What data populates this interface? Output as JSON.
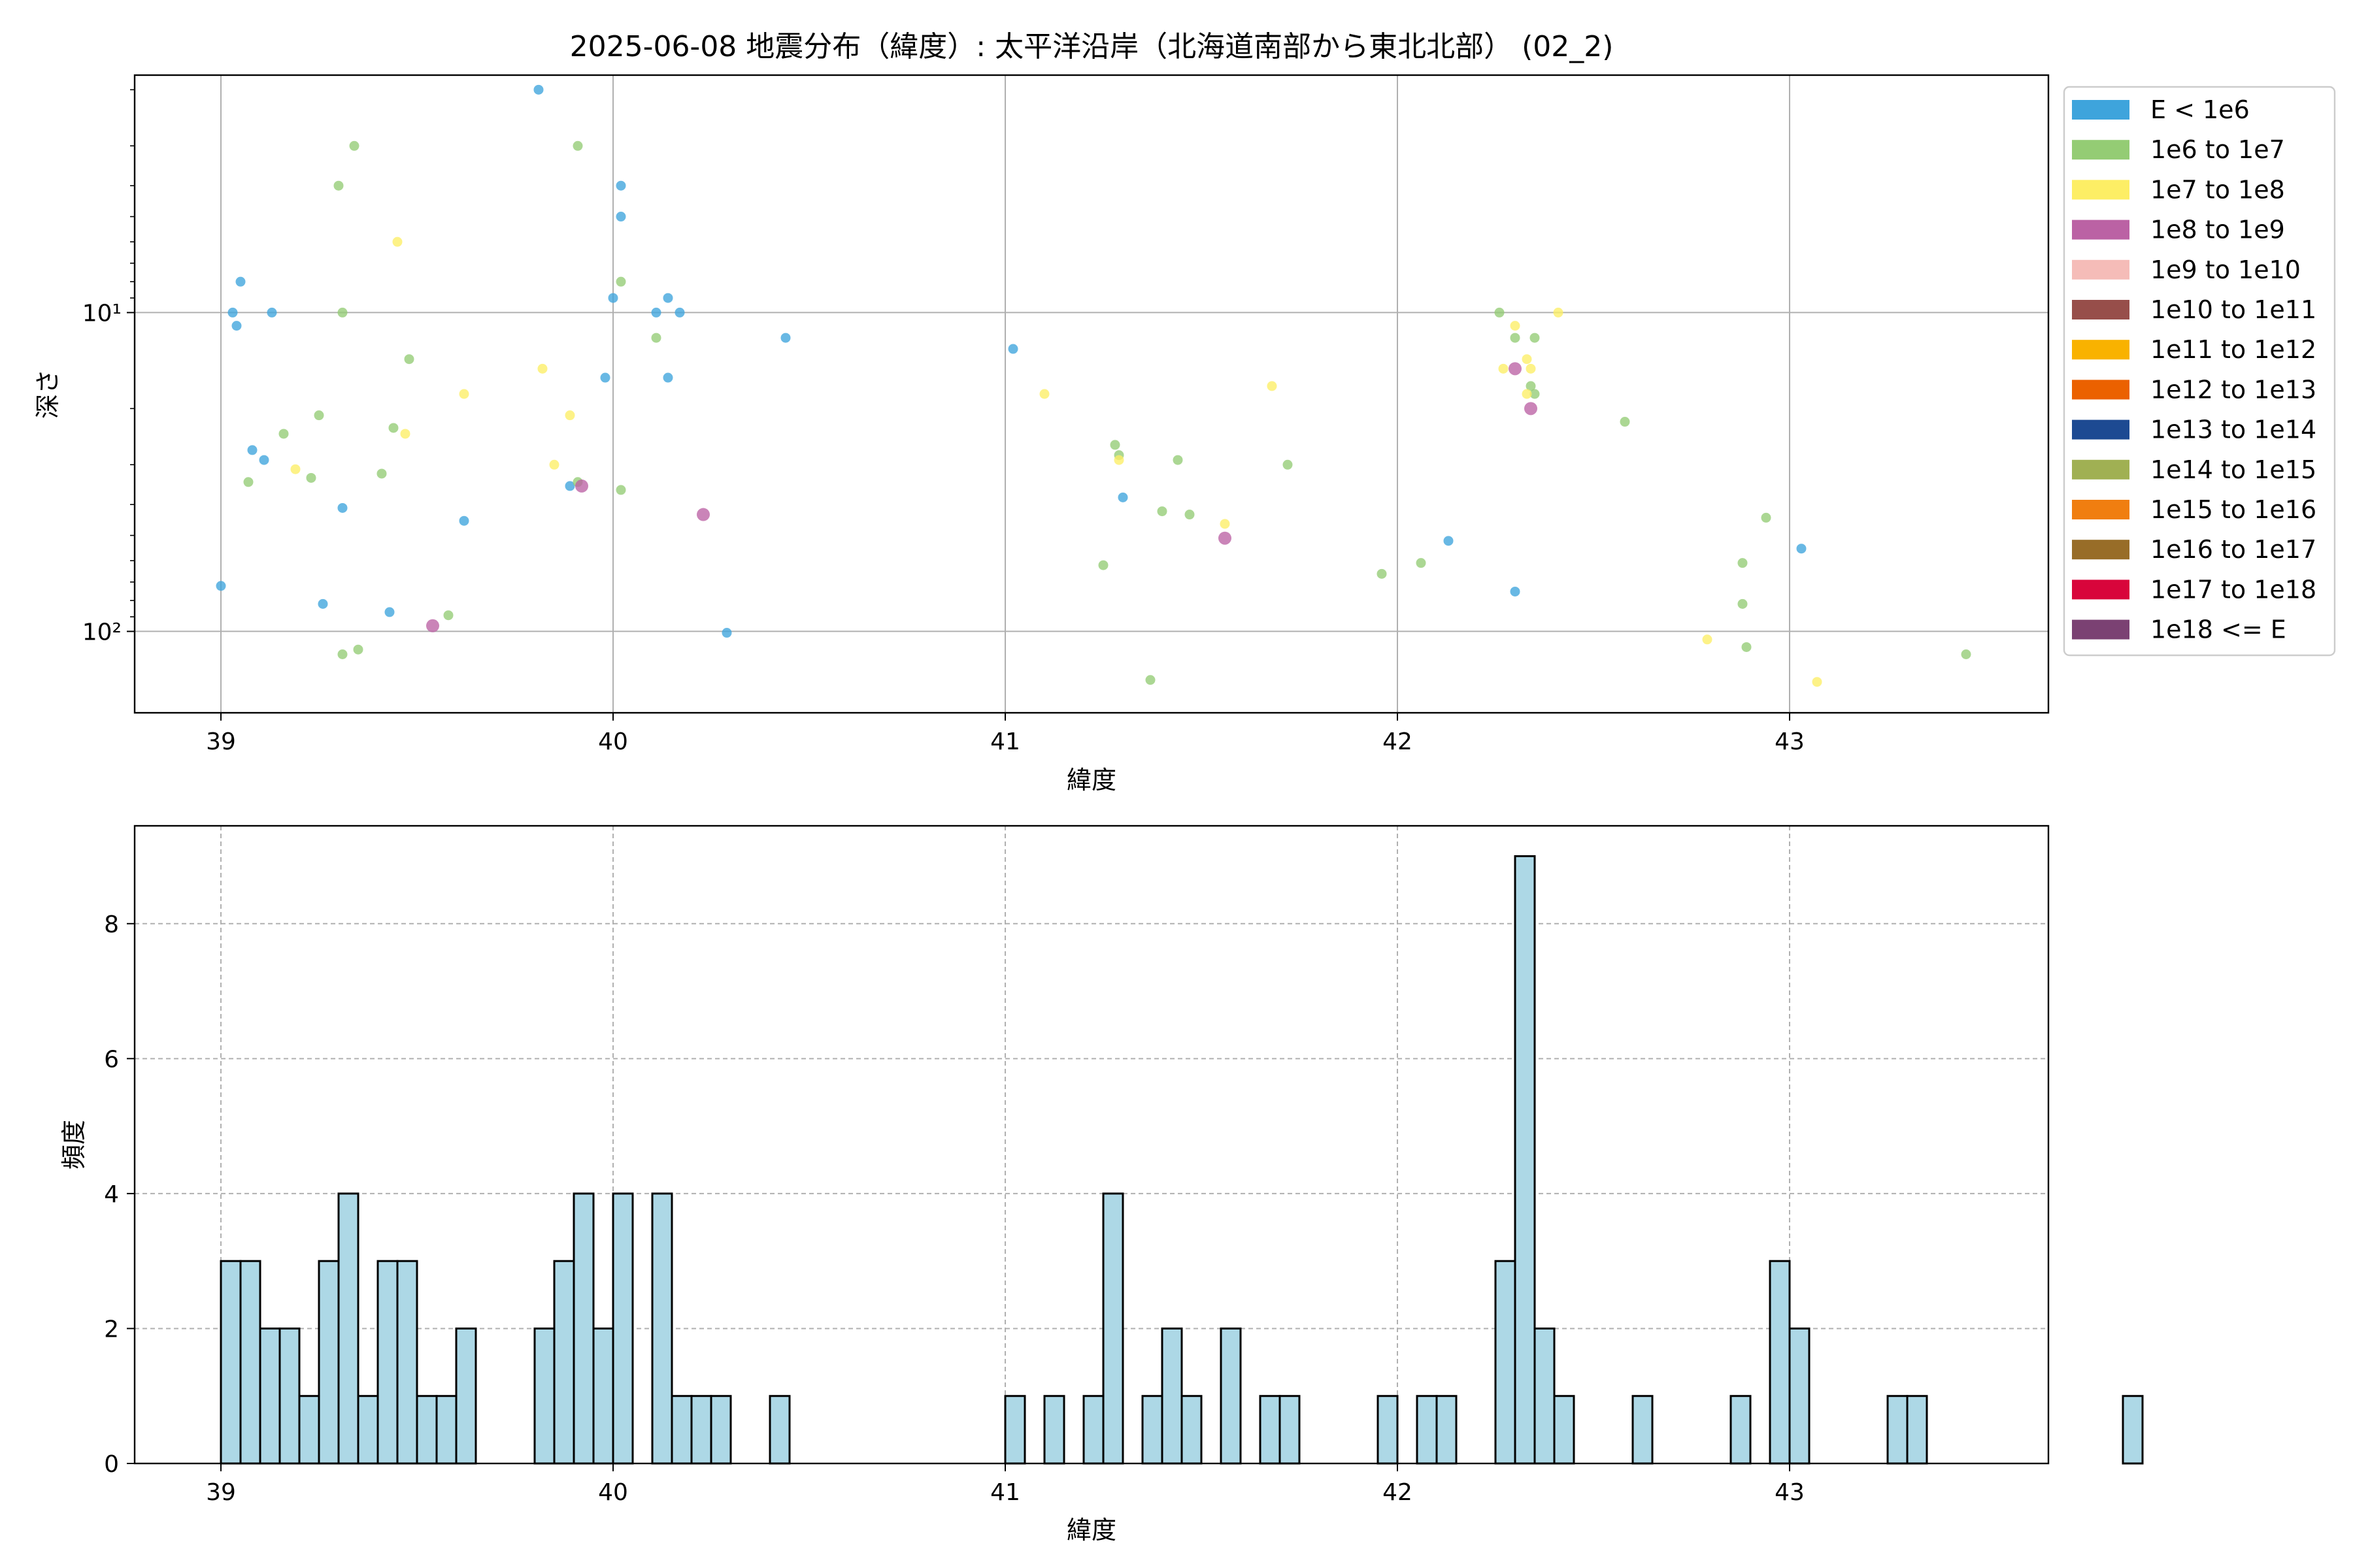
{
  "title": "2025-06-08 地震分布（緯度）: 太平洋沿岸（北海道南部から東北北部） (02_2)",
  "chart_data": [
    {
      "type": "scatter",
      "xlabel": "緯度",
      "ylabel": "深さ",
      "xlim": [
        38.78,
        43.66
      ],
      "ylim": [
        180,
        1.8
      ],
      "y_scale": "log",
      "y_inverted": true,
      "grid": true,
      "legend_position": "outside-right",
      "x_ticks": [
        39,
        40,
        41,
        42,
        43
      ],
      "x_tick_labels": [
        "39",
        "40",
        "41",
        "42",
        "43"
      ],
      "y_ticks": [
        10,
        100
      ],
      "y_tick_labels": [
        "10¹",
        "10²"
      ],
      "legend": [
        {
          "label": "E < 1e6",
          "color": "#3ea4dc"
        },
        {
          "label": "1e6 to 1e7",
          "color": "#94cc74"
        },
        {
          "label": "1e7 to 1e8",
          "color": "#fdee65"
        },
        {
          "label": "1e8 to 1e9",
          "color": "#bb62a4"
        },
        {
          "label": "1e9 to 1e10",
          "color": "#f5bcb8"
        },
        {
          "label": "1e10 to 1e11",
          "color": "#974e4a"
        },
        {
          "label": "1e11 to 1e12",
          "color": "#f9b200"
        },
        {
          "label": "1e12 to 1e13",
          "color": "#eb6100"
        },
        {
          "label": "1e13 to 1e14",
          "color": "#1d4a92"
        },
        {
          "label": "1e14 to 1e15",
          "color": "#a0b053"
        },
        {
          "label": "1e15 to 1e16",
          "color": "#f07e10"
        },
        {
          "label": "1e16 to 1e17",
          "color": "#986d28"
        },
        {
          "label": "1e17 to 1e18",
          "color": "#d8053b"
        },
        {
          "label": "1e18 <= E",
          "color": "#7b4173"
        }
      ],
      "series": [
        {
          "label": "E < 1e6",
          "points": [
            [
              39.0,
              72
            ],
            [
              39.03,
              10
            ],
            [
              39.04,
              11
            ],
            [
              39.05,
              8
            ],
            [
              39.08,
              27
            ],
            [
              39.11,
              29
            ],
            [
              39.13,
              10
            ],
            [
              39.26,
              82
            ],
            [
              39.31,
              41
            ],
            [
              39.43,
              87
            ],
            [
              39.62,
              45
            ],
            [
              39.81,
              2
            ],
            [
              39.89,
              35
            ],
            [
              39.98,
              16
            ],
            [
              40.0,
              9
            ],
            [
              40.02,
              4
            ],
            [
              40.02,
              5
            ],
            [
              40.11,
              10
            ],
            [
              40.14,
              9
            ],
            [
              40.14,
              16
            ],
            [
              40.17,
              10
            ],
            [
              40.29,
              101
            ],
            [
              40.44,
              12
            ],
            [
              41.02,
              13
            ],
            [
              41.3,
              38
            ],
            [
              42.13,
              52
            ],
            [
              42.3,
              75
            ],
            [
              43.03,
              55
            ]
          ]
        },
        {
          "label": "1e6 to 1e7",
          "points": [
            [
              39.07,
              34
            ],
            [
              39.16,
              24
            ],
            [
              39.23,
              33
            ],
            [
              39.25,
              21
            ],
            [
              39.3,
              4
            ],
            [
              39.31,
              118
            ],
            [
              39.31,
              10
            ],
            [
              39.34,
              3
            ],
            [
              39.35,
              114
            ],
            [
              39.41,
              32
            ],
            [
              39.44,
              23
            ],
            [
              39.48,
              14
            ],
            [
              39.58,
              89
            ],
            [
              39.91,
              34
            ],
            [
              39.91,
              3
            ],
            [
              40.02,
              8
            ],
            [
              40.02,
              36
            ],
            [
              40.11,
              12
            ],
            [
              41.25,
              62
            ],
            [
              41.28,
              26
            ],
            [
              41.29,
              28
            ],
            [
              41.4,
              42
            ],
            [
              41.44,
              29
            ],
            [
              41.47,
              43
            ],
            [
              41.37,
              142
            ],
            [
              41.72,
              30
            ],
            [
              41.96,
              66
            ],
            [
              42.06,
              61
            ],
            [
              42.26,
              10
            ],
            [
              42.3,
              12
            ],
            [
              42.34,
              17
            ],
            [
              42.35,
              12
            ],
            [
              42.35,
              18
            ],
            [
              42.58,
              22
            ],
            [
              42.88,
              82
            ],
            [
              42.88,
              61
            ],
            [
              42.89,
              112
            ],
            [
              42.94,
              44
            ],
            [
              43.45,
              118
            ]
          ]
        },
        {
          "label": "1e7 to 1e8",
          "points": [
            [
              39.19,
              31
            ],
            [
              39.45,
              6
            ],
            [
              39.47,
              24
            ],
            [
              39.62,
              18
            ],
            [
              39.82,
              15
            ],
            [
              39.85,
              30
            ],
            [
              39.89,
              21
            ],
            [
              41.1,
              18
            ],
            [
              41.29,
              29
            ],
            [
              41.56,
              46
            ],
            [
              41.68,
              17
            ],
            [
              42.27,
              15
            ],
            [
              42.3,
              11
            ],
            [
              42.33,
              14
            ],
            [
              42.34,
              15
            ],
            [
              42.33,
              18
            ],
            [
              42.41,
              10
            ],
            [
              42.79,
              106
            ],
            [
              43.07,
              144
            ]
          ]
        },
        {
          "label": "1e8 to 1e9",
          "points": [
            [
              39.54,
              96
            ],
            [
              39.92,
              35
            ],
            [
              40.23,
              43
            ],
            [
              41.56,
              51
            ],
            [
              42.3,
              15
            ],
            [
              42.34,
              20
            ]
          ]
        }
      ]
    },
    {
      "type": "histogram",
      "xlabel": "緯度",
      "ylabel": "頻度",
      "xlim": [
        38.78,
        43.66
      ],
      "ylim": [
        0,
        9.45
      ],
      "grid": true,
      "x_ticks": [
        39,
        40,
        41,
        42,
        43
      ],
      "x_tick_labels": [
        "39",
        "40",
        "41",
        "42",
        "43"
      ],
      "y_ticks": [
        0,
        2,
        4,
        6,
        8
      ],
      "y_tick_labels": [
        "0",
        "2",
        "4",
        "6",
        "8"
      ],
      "bin_start": 39.0,
      "bin_width": 0.05,
      "counts": [
        3,
        3,
        2,
        2,
        1,
        3,
        4,
        1,
        3,
        3,
        1,
        1,
        2,
        0,
        0,
        0,
        2,
        3,
        4,
        2,
        4,
        0,
        4,
        1,
        1,
        1,
        0,
        0,
        1,
        0,
        0,
        0,
        0,
        0,
        0,
        0,
        0,
        0,
        0,
        0,
        1,
        0,
        1,
        0,
        1,
        4,
        0,
        1,
        2,
        1,
        0,
        2,
        0,
        1,
        1,
        0,
        0,
        0,
        0,
        1,
        0,
        1,
        1,
        0,
        0,
        3,
        9,
        2,
        1,
        0,
        0,
        0,
        1,
        0,
        0,
        0,
        0,
        1,
        0,
        3,
        2,
        0,
        0,
        0,
        0,
        1,
        1,
        0,
        0,
        0,
        0,
        0,
        0,
        0,
        0,
        0,
        0,
        1
      ],
      "bar_color": "#add8e6",
      "edge_color": "#000000"
    }
  ]
}
